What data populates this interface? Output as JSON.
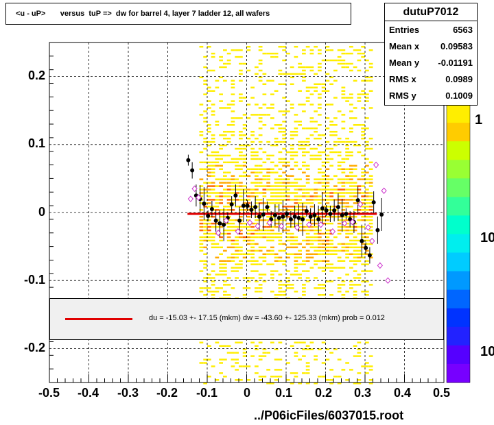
{
  "title": "<u - uP>       versus  tuP =>  dw for barrel 4, layer 7 ladder 12, all wafers",
  "stats": {
    "name": "dutuP7012",
    "rows": [
      {
        "label": "Entries",
        "value": "6563"
      },
      {
        "label": "Mean x",
        "value": "0.09583"
      },
      {
        "label": "Mean y",
        "value": "-0.01191"
      },
      {
        "label": "RMS x",
        "value": "0.0989"
      },
      {
        "label": "RMS y",
        "value": "0.1009"
      }
    ]
  },
  "fit_legend": "du =  -15.03 +- 17.15 (mkm) dw =  -43.60 +- 125.33 (mkm) prob = 0.012",
  "footer": "../P06icFiles/6037015.root",
  "z_axis_labels": [
    "1",
    "10",
    "10"
  ],
  "colors": {
    "fit_line": "#e00000",
    "profile_black": "#000000",
    "profile_open": "#cc33cc",
    "legend_bg": "#f0f0f0"
  },
  "chart_data": {
    "type": "heatmap",
    "xlim": [
      -0.5,
      0.5
    ],
    "ylim": [
      -0.25,
      0.25
    ],
    "x_ticks": [
      "-0.5",
      "-0.4",
      "-0.3",
      "-0.2",
      "-0.1",
      "0",
      "0.1",
      "0.2",
      "0.3",
      "0.4",
      "0.5"
    ],
    "y_ticks": [
      "-0.2",
      "-0.1",
      "0",
      "0.1",
      "0.2"
    ],
    "grid": true,
    "log_z": true,
    "density_x_range": [
      -0.12,
      0.32
    ],
    "fit_line": {
      "x": [
        -0.15,
        0.33
      ],
      "y": [
        -0.002,
        -0.002
      ]
    },
    "profile_filled": [
      {
        "x": -0.148,
        "y": 0.077
      },
      {
        "x": -0.138,
        "y": 0.062
      },
      {
        "x": -0.128,
        "y": 0.025
      },
      {
        "x": -0.118,
        "y": 0.02
      },
      {
        "x": -0.108,
        "y": 0.013
      },
      {
        "x": -0.098,
        "y": -0.005
      },
      {
        "x": -0.088,
        "y": 0.005
      },
      {
        "x": -0.078,
        "y": -0.012
      },
      {
        "x": -0.068,
        "y": -0.016
      },
      {
        "x": -0.058,
        "y": -0.018
      },
      {
        "x": -0.048,
        "y": -0.008
      },
      {
        "x": -0.038,
        "y": 0.012
      },
      {
        "x": -0.028,
        "y": 0.025
      },
      {
        "x": -0.018,
        "y": -0.012
      },
      {
        "x": -0.008,
        "y": 0.01
      },
      {
        "x": 0.002,
        "y": 0.01
      },
      {
        "x": 0.012,
        "y": 0.004
      },
      {
        "x": 0.022,
        "y": 0.008
      },
      {
        "x": 0.032,
        "y": -0.006
      },
      {
        "x": 0.042,
        "y": -0.003
      },
      {
        "x": 0.052,
        "y": 0.008
      },
      {
        "x": 0.062,
        "y": -0.01
      },
      {
        "x": 0.072,
        "y": -0.004
      },
      {
        "x": 0.082,
        "y": -0.008
      },
      {
        "x": 0.092,
        "y": -0.006
      },
      {
        "x": 0.102,
        "y": -0.002
      },
      {
        "x": 0.112,
        "y": -0.01
      },
      {
        "x": 0.122,
        "y": -0.006
      },
      {
        "x": 0.132,
        "y": -0.008
      },
      {
        "x": 0.142,
        "y": -0.01
      },
      {
        "x": 0.152,
        "y": 0.002
      },
      {
        "x": 0.162,
        "y": -0.006
      },
      {
        "x": 0.172,
        "y": -0.004
      },
      {
        "x": 0.182,
        "y": -0.01
      },
      {
        "x": 0.192,
        "y": 0.006
      },
      {
        "x": 0.202,
        "y": 0.003
      },
      {
        "x": 0.212,
        "y": -0.002
      },
      {
        "x": 0.222,
        "y": 0.003
      },
      {
        "x": 0.232,
        "y": 0.008
      },
      {
        "x": 0.242,
        "y": -0.004
      },
      {
        "x": 0.252,
        "y": -0.002
      },
      {
        "x": 0.262,
        "y": -0.01
      },
      {
        "x": 0.272,
        "y": -0.014
      },
      {
        "x": 0.282,
        "y": 0.018
      },
      {
        "x": 0.292,
        "y": -0.042
      },
      {
        "x": 0.302,
        "y": -0.052
      },
      {
        "x": 0.312,
        "y": -0.063
      },
      {
        "x": 0.322,
        "y": 0.015
      },
      {
        "x": 0.332,
        "y": -0.026
      },
      {
        "x": 0.342,
        "y": -0.003
      }
    ],
    "profile_open": [
      {
        "x": -0.142,
        "y": 0.02
      },
      {
        "x": -0.132,
        "y": 0.035
      },
      {
        "x": -0.122,
        "y": 0.022
      },
      {
        "x": -0.072,
        "y": -0.03
      },
      {
        "x": -0.052,
        "y": -0.012
      },
      {
        "x": -0.022,
        "y": -0.028
      },
      {
        "x": 0.008,
        "y": -0.015
      },
      {
        "x": 0.028,
        "y": -0.02
      },
      {
        "x": 0.058,
        "y": -0.015
      },
      {
        "x": 0.088,
        "y": -0.02
      },
      {
        "x": 0.128,
        "y": -0.022
      },
      {
        "x": 0.158,
        "y": -0.018
      },
      {
        "x": 0.188,
        "y": -0.018
      },
      {
        "x": 0.218,
        "y": -0.028
      },
      {
        "x": 0.248,
        "y": -0.016
      },
      {
        "x": 0.268,
        "y": -0.014
      },
      {
        "x": 0.288,
        "y": 0.012
      },
      {
        "x": 0.308,
        "y": -0.022
      },
      {
        "x": 0.318,
        "y": -0.042
      },
      {
        "x": 0.328,
        "y": 0.07
      },
      {
        "x": 0.338,
        "y": -0.078
      },
      {
        "x": 0.348,
        "y": 0.032
      },
      {
        "x": 0.358,
        "y": -0.1
      }
    ]
  }
}
